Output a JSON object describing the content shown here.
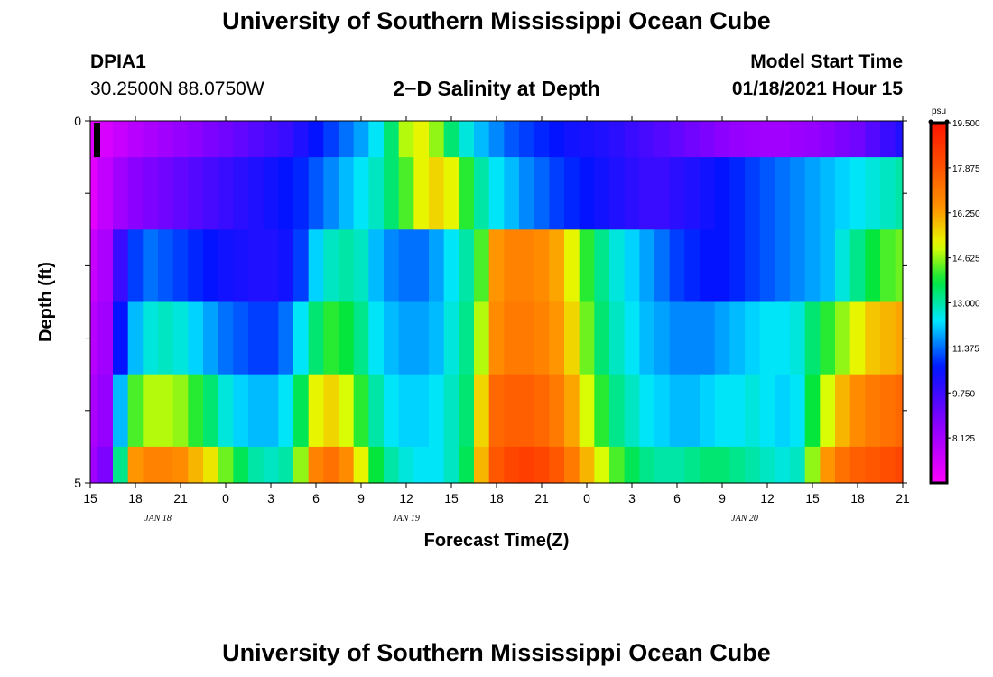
{
  "header": {
    "title": "University of Southern Mississippi Ocean Cube",
    "station": "DPIA1",
    "coordinates": "30.2500N 88.0750W",
    "subtitle": "2−D Salinity at Depth",
    "model_start_label": "Model Start Time",
    "model_start_value": "01/18/2021 Hour 15"
  },
  "footer": {
    "title": "University of Southern Mississippi Ocean Cube"
  },
  "chart_data": {
    "type": "heatmap",
    "xlabel": "Forecast Time(Z)",
    "ylabel": "Depth (ft)",
    "x_range_hours": [
      0,
      54
    ],
    "y_range": [
      0,
      5
    ],
    "x_ticks": [
      "15",
      "18",
      "21",
      "0",
      "3",
      "6",
      "9",
      "12",
      "15",
      "18",
      "21",
      "0",
      "3",
      "6",
      "9",
      "12",
      "15",
      "18",
      "21"
    ],
    "y_ticks": [
      "0",
      "5"
    ],
    "date_labels": [
      {
        "text": "JAN 18",
        "hour": 4.5
      },
      {
        "text": "JAN 19",
        "hour": 21
      },
      {
        "text": "JAN 20",
        "hour": 43.5
      }
    ],
    "colorbar": {
      "unit": "psu",
      "min": 6.5,
      "max": 19.5,
      "ticks": [
        "19.500",
        "17.875",
        "16.250",
        "14.625",
        "13.000",
        "11.375",
        "9.750",
        "8.125"
      ],
      "tick_values": [
        19.5,
        17.875,
        16.25,
        14.625,
        13.0,
        11.375,
        9.75,
        8.125
      ]
    },
    "depth_bands": [
      {
        "from": 0.0,
        "to": 0.5
      },
      {
        "from": 0.5,
        "to": 1.5
      },
      {
        "from": 1.5,
        "to": 2.5
      },
      {
        "from": 2.5,
        "to": 3.5
      },
      {
        "from": 3.5,
        "to": 4.5
      },
      {
        "from": 4.5,
        "to": 5.0
      }
    ],
    "salinity_hours": [
      0,
      1,
      2,
      3,
      4,
      5,
      6,
      7,
      8,
      9,
      10,
      11,
      12,
      13,
      14,
      15,
      16,
      17,
      18,
      19,
      20,
      21,
      22,
      23,
      24,
      25,
      26,
      27,
      28,
      29,
      30,
      31,
      32,
      33,
      34,
      35,
      36,
      37,
      38,
      39,
      40,
      41,
      42,
      43,
      44,
      45,
      46,
      47,
      48,
      49,
      50,
      51,
      52,
      53,
      54
    ],
    "salinity": [
      [
        7.0,
        7.2,
        7.5,
        7.8,
        8.0,
        8.2,
        8.4,
        8.6,
        8.8,
        9.0,
        9.2,
        9.4,
        9.6,
        9.8,
        10.2,
        10.6,
        11.0,
        11.4,
        11.8,
        12.4,
        13.4,
        14.8,
        15.2,
        14.6,
        13.4,
        12.6,
        12.0,
        11.6,
        11.2,
        11.0,
        10.8,
        10.6,
        10.4,
        10.3,
        10.2,
        10.0,
        9.8,
        9.6,
        9.4,
        9.2,
        9.0,
        8.8,
        8.6,
        8.4,
        8.3,
        8.2,
        8.2,
        8.3,
        8.4,
        8.6,
        8.8,
        9.0,
        9.4,
        9.8,
        10.2
      ],
      [
        7.0,
        7.6,
        8.2,
        8.6,
        8.8,
        9.0,
        9.2,
        9.4,
        9.6,
        9.8,
        10.0,
        10.2,
        10.4,
        10.6,
        10.8,
        11.2,
        11.6,
        12.0,
        12.4,
        12.8,
        13.4,
        14.2,
        15.2,
        15.6,
        15.2,
        14.0,
        13.0,
        12.4,
        12.0,
        11.6,
        11.3,
        11.0,
        10.8,
        10.6,
        10.4,
        10.2,
        10.0,
        9.8,
        9.8,
        10.0,
        10.2,
        10.4,
        10.6,
        10.8,
        11.0,
        11.2,
        11.4,
        11.6,
        11.8,
        12.0,
        12.2,
        12.4,
        12.6,
        12.8,
        13.0
      ],
      [
        7.5,
        8.0,
        9.8,
        11.0,
        11.4,
        11.2,
        11.0,
        10.8,
        10.6,
        10.4,
        10.3,
        10.2,
        10.2,
        10.4,
        11.0,
        12.2,
        12.8,
        13.0,
        12.8,
        12.0,
        11.6,
        11.4,
        11.4,
        11.8,
        12.4,
        13.0,
        14.2,
        16.4,
        16.8,
        16.8,
        16.6,
        16.2,
        15.2,
        14.0,
        13.2,
        12.6,
        12.2,
        11.8,
        11.4,
        11.0,
        10.8,
        10.6,
        10.6,
        10.8,
        11.0,
        11.2,
        11.4,
        11.6,
        11.8,
        12.0,
        12.6,
        13.2,
        13.8,
        14.2,
        14.4
      ],
      [
        7.8,
        8.2,
        10.6,
        12.0,
        12.6,
        12.8,
        12.6,
        12.2,
        11.8,
        11.4,
        11.2,
        11.0,
        11.0,
        11.4,
        12.4,
        13.4,
        14.0,
        13.8,
        13.2,
        12.4,
        12.0,
        11.8,
        11.8,
        12.0,
        12.6,
        13.2,
        14.8,
        16.6,
        17.0,
        17.0,
        16.8,
        16.4,
        15.6,
        14.4,
        13.4,
        12.8,
        12.4,
        12.0,
        11.8,
        11.6,
        11.6,
        11.6,
        11.8,
        12.0,
        12.2,
        12.4,
        12.4,
        12.6,
        13.4,
        14.0,
        14.6,
        15.2,
        15.8,
        16.0,
        16.2
      ],
      [
        8.0,
        8.4,
        12.0,
        14.2,
        14.8,
        14.8,
        14.6,
        14.0,
        13.4,
        12.6,
        12.2,
        12.0,
        12.0,
        12.4,
        13.6,
        15.2,
        15.6,
        15.0,
        14.0,
        13.0,
        12.4,
        12.2,
        12.2,
        12.4,
        12.8,
        13.4,
        15.6,
        17.4,
        17.6,
        17.6,
        17.4,
        17.0,
        16.2,
        15.0,
        14.0,
        13.2,
        12.8,
        12.4,
        12.2,
        12.0,
        12.0,
        12.2,
        12.4,
        12.4,
        12.6,
        12.4,
        12.2,
        12.4,
        13.8,
        15.0,
        16.0,
        16.6,
        17.0,
        17.2,
        17.4
      ],
      [
        8.2,
        8.8,
        13.2,
        16.4,
        16.8,
        16.8,
        16.6,
        16.0,
        15.4,
        14.4,
        13.6,
        13.0,
        12.8,
        13.0,
        14.6,
        16.8,
        17.2,
        16.6,
        15.2,
        13.8,
        13.0,
        12.6,
        12.4,
        12.4,
        12.8,
        13.6,
        16.0,
        17.8,
        18.2,
        18.4,
        18.2,
        17.8,
        17.0,
        16.0,
        15.0,
        14.2,
        13.6,
        13.2,
        13.0,
        13.0,
        13.2,
        13.4,
        13.4,
        13.2,
        13.0,
        12.8,
        12.6,
        12.8,
        14.6,
        16.4,
        17.2,
        17.6,
        17.8,
        18.0,
        18.2
      ]
    ]
  }
}
